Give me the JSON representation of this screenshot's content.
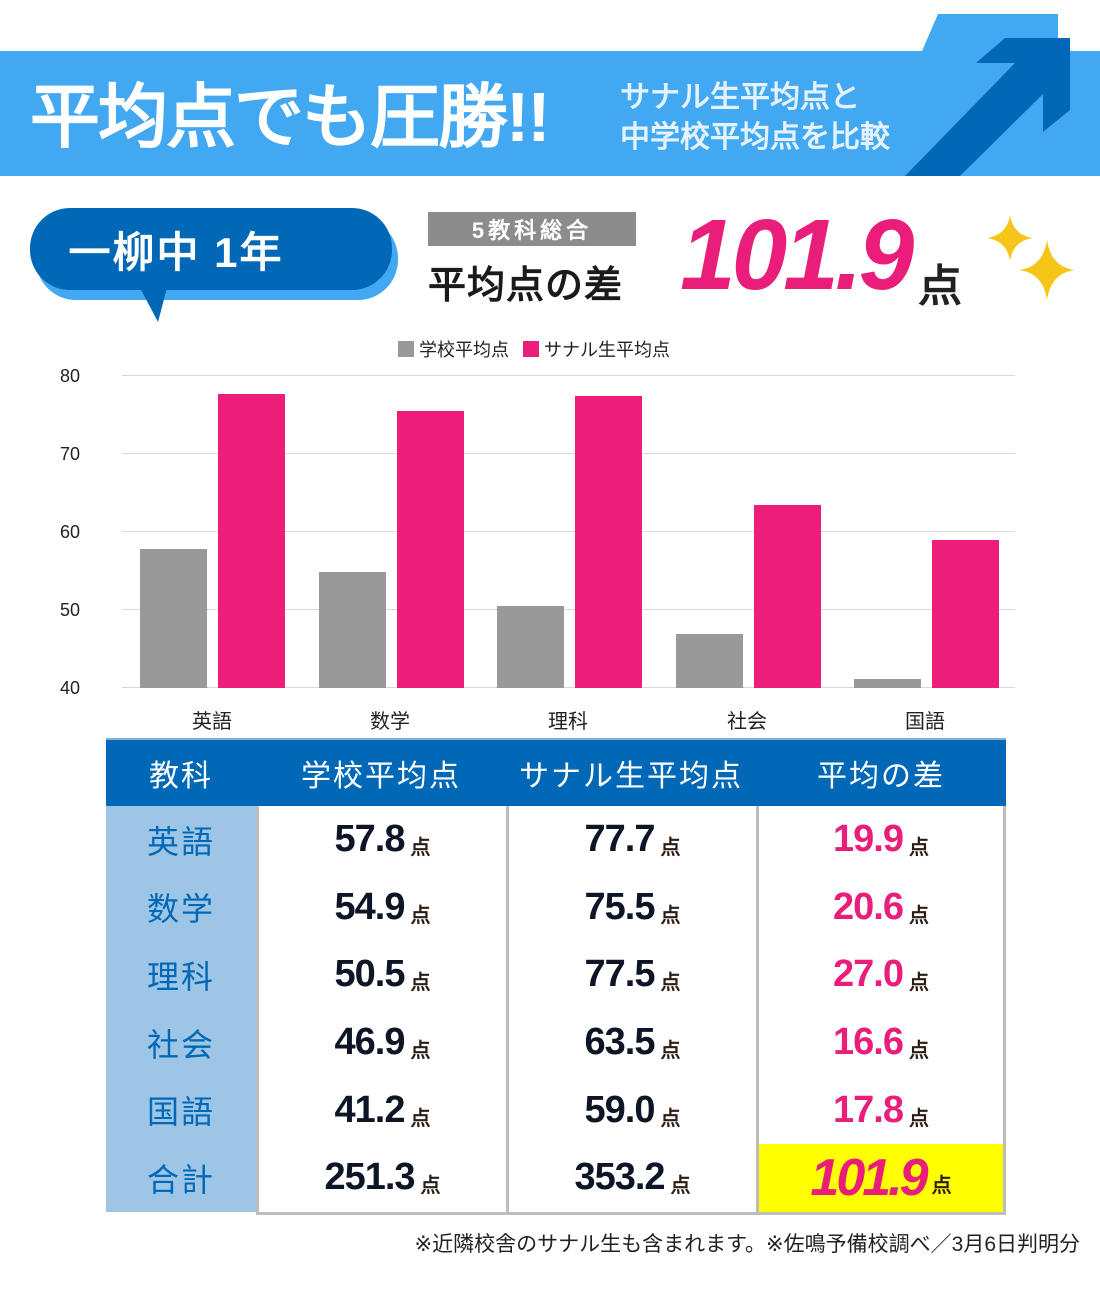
{
  "header": {
    "title": "平均点でも圧勝!!",
    "subtitle_line1": "サナル生平均点と",
    "subtitle_line2": "中学校平均点を比較",
    "colors": {
      "banner": "#42a8f2",
      "arrow_dark": "#0068b7",
      "arrow_light": "#42a8f2"
    }
  },
  "badge": {
    "school_grade": "一柳中 1年",
    "total_label": "5教科総合",
    "diff_label": "平均点の差",
    "diff_value": "101.9",
    "diff_unit": "点",
    "accent_color": "#e91e7a"
  },
  "chart_data": {
    "type": "bar",
    "title": "",
    "categories": [
      "英語",
      "数学",
      "理科",
      "社会",
      "国語"
    ],
    "series": [
      {
        "name": "学校平均点",
        "color": "#999999",
        "values": [
          57.8,
          54.9,
          50.5,
          46.9,
          41.2
        ]
      },
      {
        "name": "サナル生平均点",
        "color": "#ec1e79",
        "values": [
          77.7,
          75.5,
          77.5,
          63.5,
          59.0
        ]
      }
    ],
    "xlabel": "",
    "ylabel": "",
    "ylim": [
      40,
      80
    ],
    "yticks": [
      "80",
      "70",
      "60",
      "50",
      "40"
    ],
    "grid": true,
    "legend_position": "top"
  },
  "table": {
    "headers": [
      "教科",
      "学校平均点",
      "サナル生平均点",
      "平均の差"
    ],
    "unit": "点",
    "rows": [
      {
        "subject": "英語",
        "school": "57.8",
        "sanaru": "77.7",
        "diff": "19.9"
      },
      {
        "subject": "数学",
        "school": "54.9",
        "sanaru": "75.5",
        "diff": "20.6"
      },
      {
        "subject": "理科",
        "school": "50.5",
        "sanaru": "77.5",
        "diff": "27.0"
      },
      {
        "subject": "社会",
        "school": "46.9",
        "sanaru": "63.5",
        "diff": "16.6"
      },
      {
        "subject": "国語",
        "school": "41.2",
        "sanaru": "59.0",
        "diff": "17.8"
      }
    ],
    "total": {
      "subject": "合計",
      "school": "251.3",
      "sanaru": "353.2",
      "diff": "101.9"
    }
  },
  "footnote": "※近隣校舎のサナル生も含まれます。※佐鳴予備校調べ／3月6日判明分"
}
